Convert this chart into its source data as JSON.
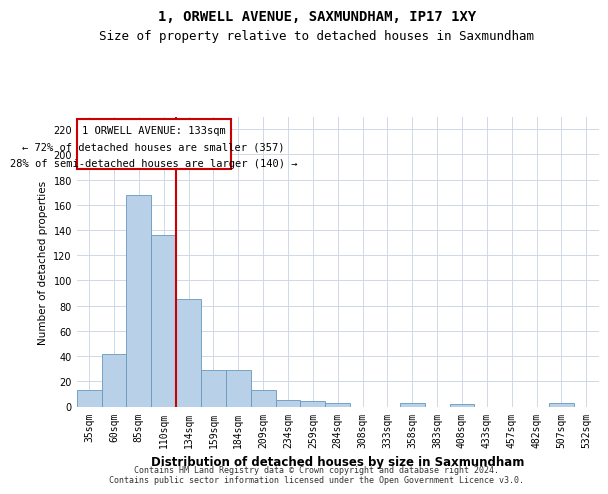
{
  "title": "1, ORWELL AVENUE, SAXMUNDHAM, IP17 1XY",
  "subtitle": "Size of property relative to detached houses in Saxmundham",
  "xlabel": "Distribution of detached houses by size in Saxmundham",
  "ylabel": "Number of detached properties",
  "footer_line1": "Contains HM Land Registry data © Crown copyright and database right 2024.",
  "footer_line2": "Contains public sector information licensed under the Open Government Licence v3.0.",
  "categories": [
    "35sqm",
    "60sqm",
    "85sqm",
    "110sqm",
    "134sqm",
    "159sqm",
    "184sqm",
    "209sqm",
    "234sqm",
    "259sqm",
    "284sqm",
    "308sqm",
    "333sqm",
    "358sqm",
    "383sqm",
    "408sqm",
    "433sqm",
    "457sqm",
    "482sqm",
    "507sqm",
    "532sqm"
  ],
  "values": [
    13,
    42,
    168,
    136,
    85,
    29,
    29,
    13,
    5,
    4,
    3,
    0,
    0,
    3,
    0,
    2,
    0,
    0,
    0,
    3,
    0
  ],
  "bar_color": "#b8d0e8",
  "bar_edge_color": "#6699bb",
  "grid_color": "#d0d8e8",
  "annotation_box_color": "#cc0000",
  "vline_color": "#cc0000",
  "vline_x_index": 4,
  "annotation_line1": "1 ORWELL AVENUE: 133sqm",
  "annotation_line2": "← 72% of detached houses are smaller (357)",
  "annotation_line3": "28% of semi-detached houses are larger (140) →",
  "ylim": [
    0,
    230
  ],
  "yticks": [
    0,
    20,
    40,
    60,
    80,
    100,
    120,
    140,
    160,
    180,
    200,
    220
  ],
  "background_color": "#ffffff",
  "title_fontsize": 10,
  "subtitle_fontsize": 9,
  "annotation_fontsize": 7.5,
  "ylabel_fontsize": 7.5,
  "xlabel_fontsize": 8.5,
  "tick_fontsize": 7
}
